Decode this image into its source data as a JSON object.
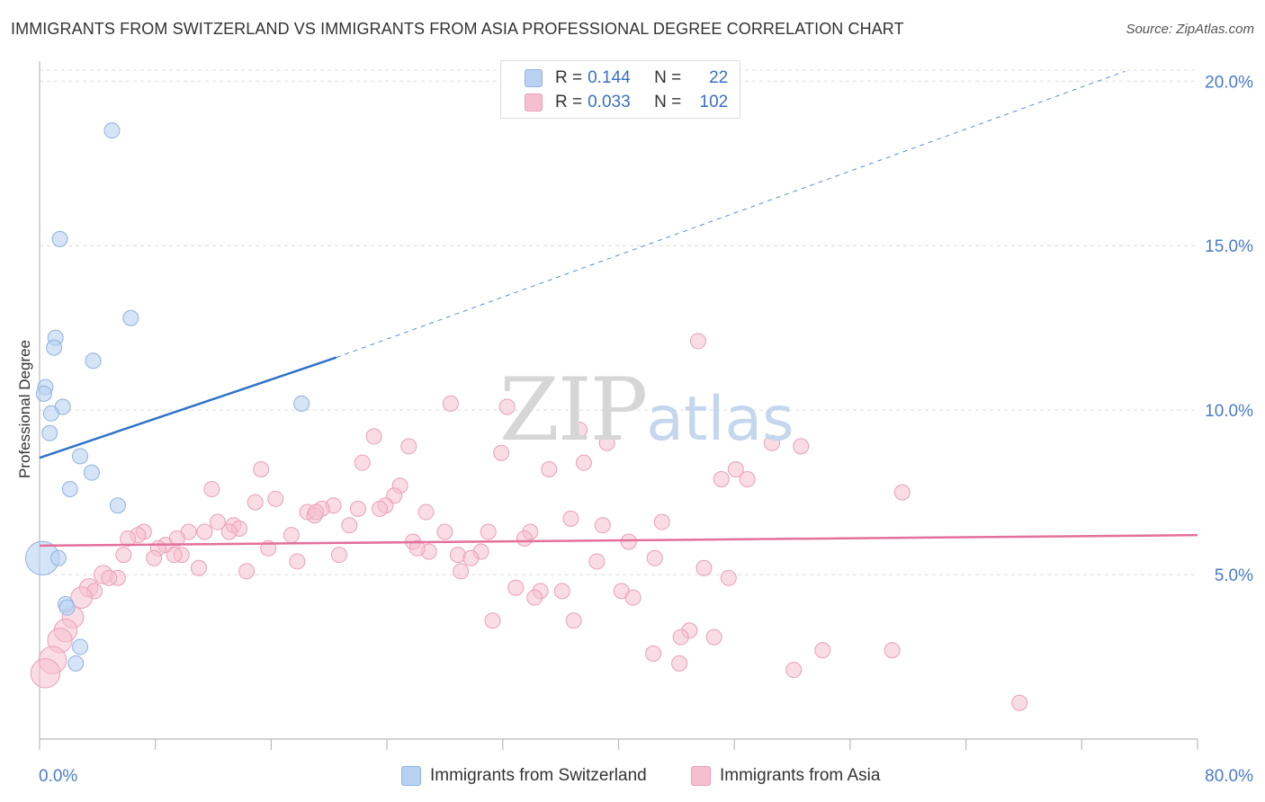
{
  "title": "IMMIGRANTS FROM SWITZERLAND VS IMMIGRANTS FROM ASIA PROFESSIONAL DEGREE CORRELATION CHART",
  "source": "Source: ZipAtlas.com",
  "watermark": {
    "zip": "ZIP",
    "atlas": "atlas"
  },
  "legend": {
    "r_label": "R =",
    "n_label": "N =",
    "rows": [
      {
        "r": "0.144",
        "n": "22"
      },
      {
        "r": "0.033",
        "n": "102"
      }
    ]
  },
  "colors": {
    "switzerland_fill": "#b9d2f1",
    "switzerland_stroke": "#8fb2e0",
    "switzerland_line": "#2f72c9",
    "asia_fill": "#f6bfd0",
    "asia_stroke": "#e9a0b8",
    "asia_line": "#e4709b",
    "tick_label": "#4a7bc8"
  },
  "chart_data": {
    "type": "scatter",
    "title": "IMMIGRANTS FROM SWITZERLAND VS IMMIGRANTS FROM ASIA PROFESSIONAL DEGREE CORRELATION CHART",
    "xlabel": "",
    "ylabel": "Professional Degree",
    "xlim": [
      0,
      80
    ],
    "ylim": [
      0,
      20.5
    ],
    "x_tick_labels": [
      "0.0%",
      "80.0%"
    ],
    "y_ticks": [
      5,
      10,
      15,
      20
    ],
    "y_tick_labels": [
      "5.0%",
      "10.0%",
      "15.0%",
      "20.0%"
    ],
    "series": [
      {
        "name": "Immigrants from Switzerland",
        "R": 0.144,
        "N": 22,
        "trend": {
          "x0": 0,
          "y0": 8.55,
          "x1": 20.5,
          "y1": 11.6,
          "dashed_to_x": 75,
          "dashed_to_y": 20.3
        },
        "points": [
          {
            "x": 5.0,
            "y": 18.5,
            "s": 1
          },
          {
            "x": 1.4,
            "y": 15.2,
            "s": 1
          },
          {
            "x": 6.3,
            "y": 12.8,
            "s": 1
          },
          {
            "x": 1.1,
            "y": 12.2,
            "s": 1
          },
          {
            "x": 1.0,
            "y": 11.9,
            "s": 1
          },
          {
            "x": 3.7,
            "y": 11.5,
            "s": 1
          },
          {
            "x": 0.4,
            "y": 10.7,
            "s": 1
          },
          {
            "x": 0.3,
            "y": 10.5,
            "s": 1
          },
          {
            "x": 1.6,
            "y": 10.1,
            "s": 1
          },
          {
            "x": 0.8,
            "y": 9.9,
            "s": 1
          },
          {
            "x": 18.1,
            "y": 10.2,
            "s": 1
          },
          {
            "x": 0.7,
            "y": 9.3,
            "s": 1
          },
          {
            "x": 2.8,
            "y": 8.6,
            "s": 1
          },
          {
            "x": 3.6,
            "y": 8.1,
            "s": 1
          },
          {
            "x": 2.1,
            "y": 7.6,
            "s": 1
          },
          {
            "x": 5.4,
            "y": 7.1,
            "s": 1
          },
          {
            "x": 0.2,
            "y": 5.5,
            "s": 2.2
          },
          {
            "x": 1.3,
            "y": 5.5,
            "s": 1
          },
          {
            "x": 1.8,
            "y": 4.1,
            "s": 1
          },
          {
            "x": 1.9,
            "y": 4.0,
            "s": 1
          },
          {
            "x": 2.8,
            "y": 2.8,
            "s": 1
          },
          {
            "x": 2.5,
            "y": 2.3,
            "s": 1
          }
        ]
      },
      {
        "name": "Immigrants from Asia",
        "R": 0.033,
        "N": 102,
        "trend": {
          "x0": 0,
          "y0": 5.88,
          "x1": 80,
          "y1": 6.2
        },
        "points": [
          {
            "x": 45.5,
            "y": 12.1,
            "s": 1
          },
          {
            "x": 28.4,
            "y": 10.2,
            "s": 1
          },
          {
            "x": 32.3,
            "y": 10.1,
            "s": 1
          },
          {
            "x": 37.3,
            "y": 9.4,
            "s": 1
          },
          {
            "x": 23.1,
            "y": 9.2,
            "s": 1
          },
          {
            "x": 39.2,
            "y": 9.0,
            "s": 1
          },
          {
            "x": 50.6,
            "y": 9.0,
            "s": 1
          },
          {
            "x": 25.5,
            "y": 8.9,
            "s": 1
          },
          {
            "x": 52.6,
            "y": 8.9,
            "s": 1
          },
          {
            "x": 31.9,
            "y": 8.7,
            "s": 1
          },
          {
            "x": 22.3,
            "y": 8.4,
            "s": 1
          },
          {
            "x": 37.6,
            "y": 8.4,
            "s": 1
          },
          {
            "x": 35.2,
            "y": 8.2,
            "s": 1
          },
          {
            "x": 15.3,
            "y": 8.2,
            "s": 1
          },
          {
            "x": 48.1,
            "y": 8.2,
            "s": 1
          },
          {
            "x": 47.1,
            "y": 7.9,
            "s": 1
          },
          {
            "x": 48.9,
            "y": 7.9,
            "s": 1
          },
          {
            "x": 24.9,
            "y": 7.7,
            "s": 1
          },
          {
            "x": 11.9,
            "y": 7.6,
            "s": 1
          },
          {
            "x": 59.6,
            "y": 7.5,
            "s": 1
          },
          {
            "x": 16.3,
            "y": 7.3,
            "s": 1
          },
          {
            "x": 24.5,
            "y": 7.4,
            "s": 1
          },
          {
            "x": 14.9,
            "y": 7.2,
            "s": 1
          },
          {
            "x": 23.9,
            "y": 7.1,
            "s": 1
          },
          {
            "x": 20.3,
            "y": 7.1,
            "s": 1
          },
          {
            "x": 19.5,
            "y": 7.0,
            "s": 1
          },
          {
            "x": 23.5,
            "y": 7.0,
            "s": 1
          },
          {
            "x": 22.0,
            "y": 7.0,
            "s": 1
          },
          {
            "x": 18.5,
            "y": 6.9,
            "s": 1
          },
          {
            "x": 26.7,
            "y": 6.9,
            "s": 1
          },
          {
            "x": 19.0,
            "y": 6.8,
            "s": 1
          },
          {
            "x": 36.7,
            "y": 6.7,
            "s": 1
          },
          {
            "x": 12.3,
            "y": 6.6,
            "s": 1
          },
          {
            "x": 21.4,
            "y": 6.5,
            "s": 1
          },
          {
            "x": 43.0,
            "y": 6.6,
            "s": 1
          },
          {
            "x": 38.9,
            "y": 6.5,
            "s": 1
          },
          {
            "x": 13.4,
            "y": 6.5,
            "s": 1
          },
          {
            "x": 13.8,
            "y": 6.4,
            "s": 1
          },
          {
            "x": 7.2,
            "y": 6.3,
            "s": 1
          },
          {
            "x": 10.3,
            "y": 6.3,
            "s": 1
          },
          {
            "x": 11.4,
            "y": 6.3,
            "s": 1
          },
          {
            "x": 6.8,
            "y": 6.2,
            "s": 1
          },
          {
            "x": 17.4,
            "y": 6.2,
            "s": 1
          },
          {
            "x": 28.0,
            "y": 6.3,
            "s": 1
          },
          {
            "x": 31.0,
            "y": 6.3,
            "s": 1
          },
          {
            "x": 33.9,
            "y": 6.3,
            "s": 1
          },
          {
            "x": 13.1,
            "y": 6.3,
            "s": 1
          },
          {
            "x": 6.1,
            "y": 6.1,
            "s": 1
          },
          {
            "x": 25.8,
            "y": 6.0,
            "s": 1
          },
          {
            "x": 33.5,
            "y": 6.1,
            "s": 1
          },
          {
            "x": 40.7,
            "y": 6.0,
            "s": 1
          },
          {
            "x": 8.7,
            "y": 5.9,
            "s": 1
          },
          {
            "x": 8.2,
            "y": 5.8,
            "s": 1
          },
          {
            "x": 15.8,
            "y": 5.8,
            "s": 1
          },
          {
            "x": 26.9,
            "y": 5.7,
            "s": 1
          },
          {
            "x": 30.5,
            "y": 5.7,
            "s": 1
          },
          {
            "x": 9.8,
            "y": 5.6,
            "s": 1
          },
          {
            "x": 9.3,
            "y": 5.6,
            "s": 1
          },
          {
            "x": 20.7,
            "y": 5.6,
            "s": 1
          },
          {
            "x": 28.9,
            "y": 5.6,
            "s": 1
          },
          {
            "x": 5.8,
            "y": 5.6,
            "s": 1
          },
          {
            "x": 29.8,
            "y": 5.5,
            "s": 1
          },
          {
            "x": 7.9,
            "y": 5.5,
            "s": 1
          },
          {
            "x": 17.8,
            "y": 5.4,
            "s": 1
          },
          {
            "x": 42.5,
            "y": 5.5,
            "s": 1
          },
          {
            "x": 38.5,
            "y": 5.4,
            "s": 1
          },
          {
            "x": 11.0,
            "y": 5.2,
            "s": 1
          },
          {
            "x": 14.3,
            "y": 5.1,
            "s": 1
          },
          {
            "x": 29.1,
            "y": 5.1,
            "s": 1
          },
          {
            "x": 45.9,
            "y": 5.2,
            "s": 1
          },
          {
            "x": 4.4,
            "y": 5.0,
            "s": 1.2
          },
          {
            "x": 5.4,
            "y": 4.9,
            "s": 1
          },
          {
            "x": 4.8,
            "y": 4.9,
            "s": 1
          },
          {
            "x": 47.6,
            "y": 4.9,
            "s": 1
          },
          {
            "x": 3.4,
            "y": 4.6,
            "s": 1.2
          },
          {
            "x": 32.9,
            "y": 4.6,
            "s": 1
          },
          {
            "x": 3.8,
            "y": 4.5,
            "s": 1
          },
          {
            "x": 34.6,
            "y": 4.5,
            "s": 1
          },
          {
            "x": 36.1,
            "y": 4.5,
            "s": 1
          },
          {
            "x": 40.2,
            "y": 4.5,
            "s": 1
          },
          {
            "x": 2.9,
            "y": 4.3,
            "s": 1.4
          },
          {
            "x": 34.2,
            "y": 4.3,
            "s": 1
          },
          {
            "x": 41.0,
            "y": 4.3,
            "s": 1
          },
          {
            "x": 2.3,
            "y": 3.7,
            "s": 1.4
          },
          {
            "x": 31.3,
            "y": 3.6,
            "s": 1
          },
          {
            "x": 36.9,
            "y": 3.6,
            "s": 1
          },
          {
            "x": 1.8,
            "y": 3.3,
            "s": 1.5
          },
          {
            "x": 44.9,
            "y": 3.3,
            "s": 1
          },
          {
            "x": 44.3,
            "y": 3.1,
            "s": 1
          },
          {
            "x": 46.6,
            "y": 3.1,
            "s": 1
          },
          {
            "x": 1.4,
            "y": 3.0,
            "s": 1.6
          },
          {
            "x": 54.1,
            "y": 2.7,
            "s": 1
          },
          {
            "x": 58.9,
            "y": 2.7,
            "s": 1
          },
          {
            "x": 42.4,
            "y": 2.6,
            "s": 1
          },
          {
            "x": 0.9,
            "y": 2.4,
            "s": 1.8
          },
          {
            "x": 44.2,
            "y": 2.3,
            "s": 1
          },
          {
            "x": 52.1,
            "y": 2.1,
            "s": 1
          },
          {
            "x": 0.4,
            "y": 2.0,
            "s": 1.9
          },
          {
            "x": 67.7,
            "y": 1.1,
            "s": 1
          },
          {
            "x": 26.1,
            "y": 5.8,
            "s": 1
          },
          {
            "x": 9.5,
            "y": 6.1,
            "s": 1
          },
          {
            "x": 19.1,
            "y": 6.9,
            "s": 1
          }
        ]
      }
    ]
  }
}
